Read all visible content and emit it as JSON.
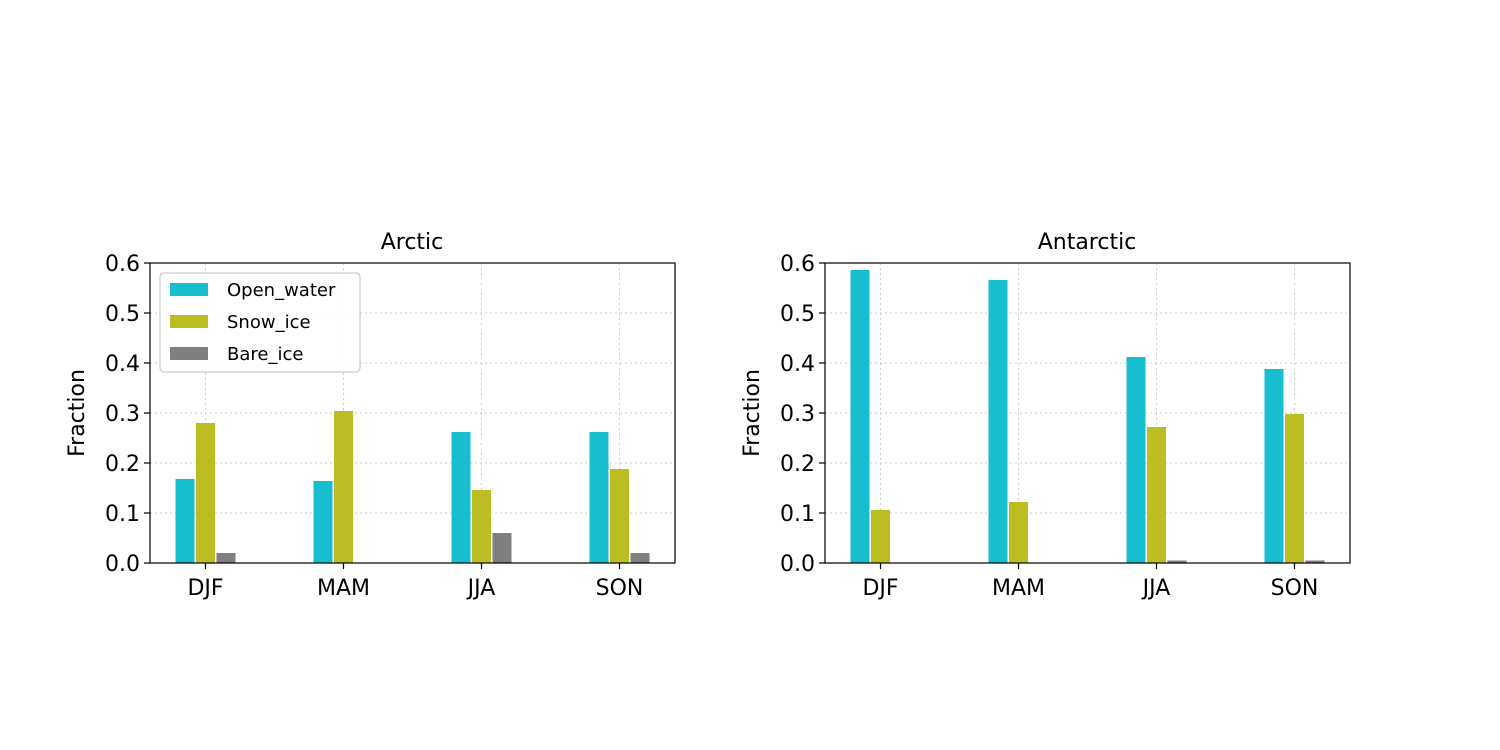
{
  "chart_data": [
    {
      "type": "bar",
      "title": "Arctic",
      "xlabel": "",
      "ylabel": "Fraction",
      "ylim": [
        0,
        0.6
      ],
      "yticks": [
        "0.0",
        "0.1",
        "0.2",
        "0.3",
        "0.4",
        "0.5",
        "0.6"
      ],
      "categories": [
        "DJF",
        "MAM",
        "JJA",
        "SON"
      ],
      "grid": true,
      "legend": "upper-left",
      "series": [
        {
          "name": "Open_water",
          "color": "#17becf",
          "values": [
            0.168,
            0.164,
            0.262,
            0.262
          ]
        },
        {
          "name": "Snow_ice",
          "color": "#bcbd22",
          "values": [
            0.28,
            0.304,
            0.146,
            0.188
          ]
        },
        {
          "name": "Bare_ice",
          "color": "#7f7f7f",
          "values": [
            0.02,
            0.0,
            0.06,
            0.02
          ]
        }
      ]
    },
    {
      "type": "bar",
      "title": "Antarctic",
      "xlabel": "",
      "ylabel": "Fraction",
      "ylim": [
        0,
        0.6
      ],
      "yticks": [
        "0.0",
        "0.1",
        "0.2",
        "0.3",
        "0.4",
        "0.5",
        "0.6"
      ],
      "categories": [
        "DJF",
        "MAM",
        "JJA",
        "SON"
      ],
      "grid": true,
      "legend": "none",
      "series": [
        {
          "name": "Open_water",
          "color": "#17becf",
          "values": [
            0.586,
            0.566,
            0.412,
            0.388
          ]
        },
        {
          "name": "Snow_ice",
          "color": "#bcbd22",
          "values": [
            0.106,
            0.122,
            0.272,
            0.298
          ]
        },
        {
          "name": "Bare_ice",
          "color": "#7f7f7f",
          "values": [
            0.0,
            0.0,
            0.005,
            0.005
          ]
        }
      ]
    }
  ]
}
